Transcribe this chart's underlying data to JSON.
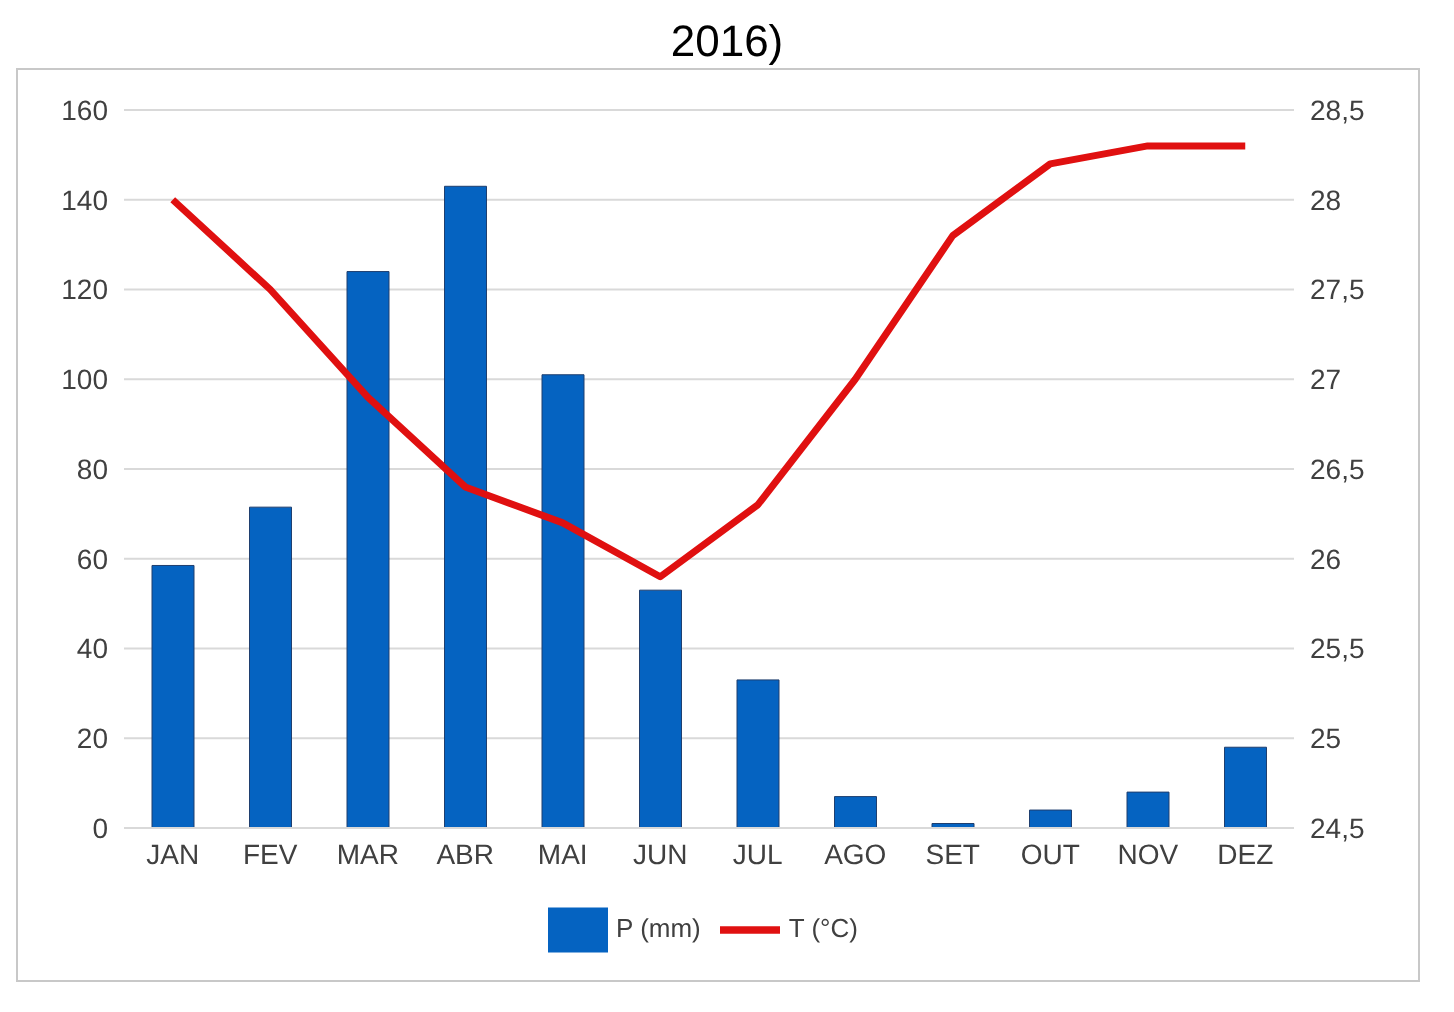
{
  "chart_data": {
    "type": "bar",
    "title": "2016)",
    "categories": [
      "JAN",
      "FEV",
      "MAR",
      "ABR",
      "MAI",
      "JUN",
      "JUL",
      "AGO",
      "SET",
      "OUT",
      "NOV",
      "DEZ"
    ],
    "series": [
      {
        "name": "P (mm)",
        "color": "#0563c1",
        "values": [
          58.5,
          71.5,
          124,
          143,
          101,
          53,
          33,
          7,
          1,
          4,
          8,
          18
        ]
      },
      {
        "name": "T (°C)",
        "type": "line",
        "axis": "y2",
        "color": "#e01010",
        "values": [
          28,
          27.5,
          26.9,
          26.4,
          26.2,
          25.9,
          26.3,
          27.0,
          27.8,
          28.2,
          28.3,
          28.3
        ]
      }
    ],
    "ylim": [
      0,
      160
    ],
    "yticks": [
      0,
      20,
      40,
      60,
      80,
      100,
      120,
      140,
      160
    ],
    "y2lim": [
      24.5,
      28.5
    ],
    "y2ticks": [
      {
        "value": 24.5,
        "label": "24,5"
      },
      25,
      {
        "value": 25.5,
        "label": "25,5"
      },
      26,
      {
        "value": 26.5,
        "label": "26,5"
      },
      27,
      {
        "value": 27.5,
        "label": "27,5"
      },
      28,
      {
        "value": 28.5,
        "label": "28,5"
      }
    ],
    "grid": "y",
    "legend": "bottom",
    "marker": "none",
    "line_style": "solid"
  }
}
